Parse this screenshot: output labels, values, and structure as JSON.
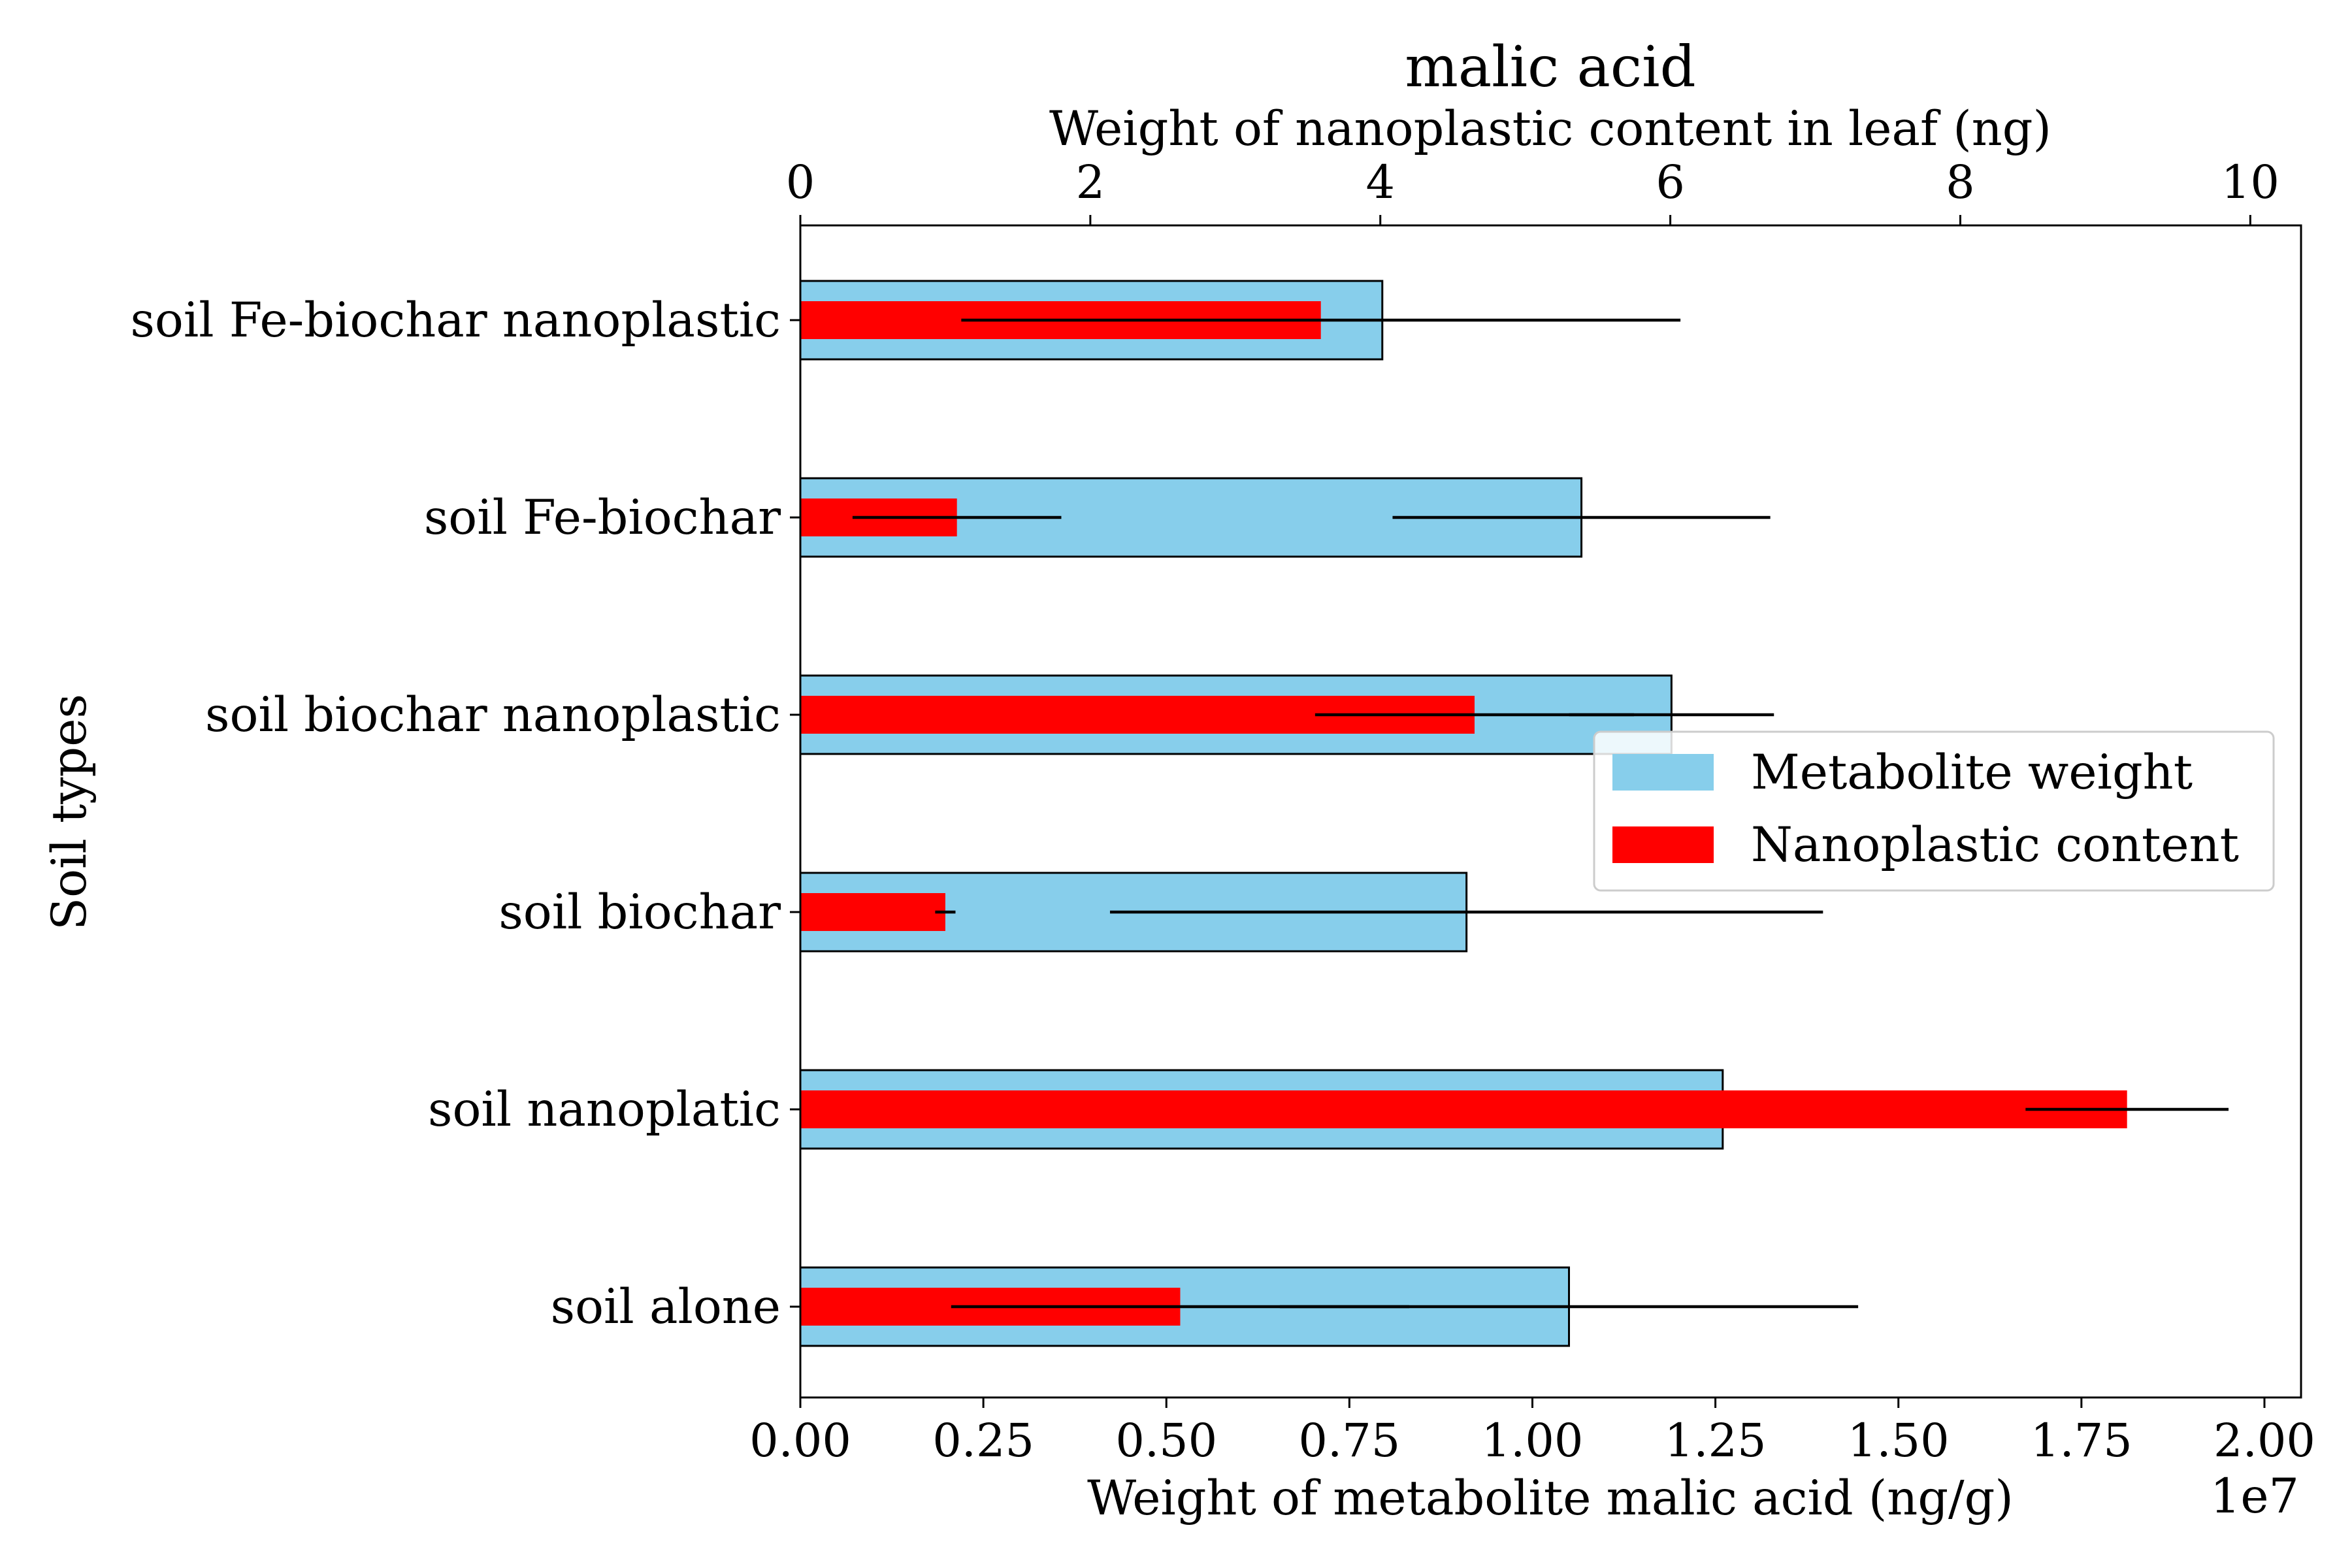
{
  "chart_data": {
    "type": "bar",
    "orientation": "horizontal",
    "title": "malic acid",
    "title_color": "#a52a2a",
    "ylabel": "Soil types",
    "categories": [
      "soil alone",
      "soil nanoplatic",
      "soil biochar",
      "soil biochar nanoplastic",
      "soil Fe-biochar",
      "soil Fe-biochar nanoplastic"
    ],
    "bottom_axis": {
      "label": "Weight of metabolite malic acid (ng/g)",
      "offset_text": "1e7",
      "xlim": [
        0,
        2.05
      ],
      "ticks": [
        0,
        0.25,
        0.5,
        0.75,
        1.0,
        1.25,
        1.5,
        1.75,
        2.0
      ],
      "tick_labels": [
        "0.00",
        "0.25",
        "0.50",
        "0.75",
        "1.00",
        "1.25",
        "1.50",
        "1.75",
        "2.00"
      ]
    },
    "top_axis": {
      "label": "Weight of nanoplastic content in leaf (ng)",
      "xlim": [
        0,
        10.35
      ],
      "ticks": [
        0,
        2,
        4,
        6,
        8,
        10
      ],
      "tick_labels": [
        "0",
        "2",
        "4",
        "6",
        "8",
        "10"
      ]
    },
    "series": [
      {
        "name": "Metabolite weight",
        "axis": "bottom",
        "color": "#87ceeb",
        "values": [
          1.05,
          1.26,
          0.91,
          1.19,
          1.067,
          0.795
        ],
        "errors": [
          0.395,
          0.0,
          0.487,
          0.14,
          0.258,
          0.0
        ]
      },
      {
        "name": "Nanoplastic content",
        "axis": "top",
        "color": "#ff0000",
        "values": [
          2.62,
          9.15,
          1.0,
          4.65,
          1.08,
          3.59
        ],
        "errors": [
          1.58,
          0.7,
          0.07,
          1.1,
          0.72,
          2.48
        ]
      }
    ],
    "legend": {
      "placement": "center-right"
    },
    "grid": false
  }
}
